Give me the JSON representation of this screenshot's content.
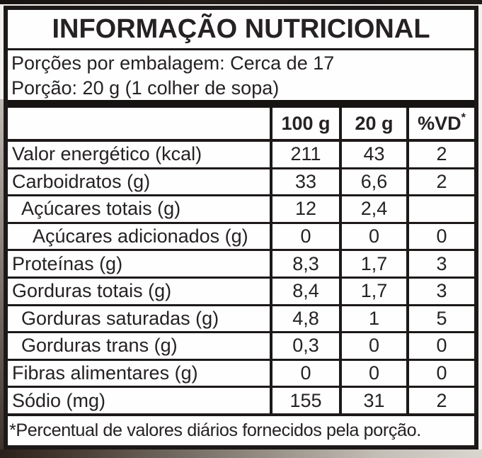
{
  "title": "INFORMAÇÃO NUTRICIONAL",
  "serving_info": {
    "servings_per_package": "Porções por embalagem: Cerca de 17",
    "serving_size": "Porção: 20 g (1 colher de sopa)"
  },
  "table": {
    "header": {
      "col_label": "",
      "col_100g": "100 g",
      "col_20g": "20 g",
      "col_vd": "%VD",
      "col_vd_sup": "*"
    },
    "rows": [
      {
        "label": "Valor energético (kcal)",
        "per_100g": "211",
        "per_20g": "43",
        "vd": "2"
      },
      {
        "label": "Carboidratos (g)",
        "per_100g": "33",
        "per_20g": "6,6",
        "vd": "2"
      },
      {
        "label": "Açúcares totais (g)",
        "per_100g": "12",
        "per_20g": "2,4",
        "vd": ""
      },
      {
        "label": "Açúcares adicionados (g)",
        "per_100g": "0",
        "per_20g": "0",
        "vd": "0"
      },
      {
        "label": "Proteínas (g)",
        "per_100g": "8,3",
        "per_20g": "1,7",
        "vd": "3"
      },
      {
        "label": "Gorduras totais (g)",
        "per_100g": "8,4",
        "per_20g": "1,7",
        "vd": "3"
      },
      {
        "label": "Gorduras saturadas (g)",
        "per_100g": "4,8",
        "per_20g": "1",
        "vd": "5"
      },
      {
        "label": "Gorduras trans (g)",
        "per_100g": "0,3",
        "per_20g": "0",
        "vd": "0"
      },
      {
        "label": "Fibras alimentares (g)",
        "per_100g": "0",
        "per_20g": "0",
        "vd": "0"
      },
      {
        "label": "Sódio (mg)",
        "per_100g": "155",
        "per_20g": "31",
        "vd": "2"
      }
    ]
  },
  "footnote": "*Percentual de valores diários fornecidos pela porção.",
  "colors": {
    "line": "#1d1919",
    "paper": "#fefefe",
    "text": "#262223",
    "photo_dark_edge": "#171312"
  }
}
